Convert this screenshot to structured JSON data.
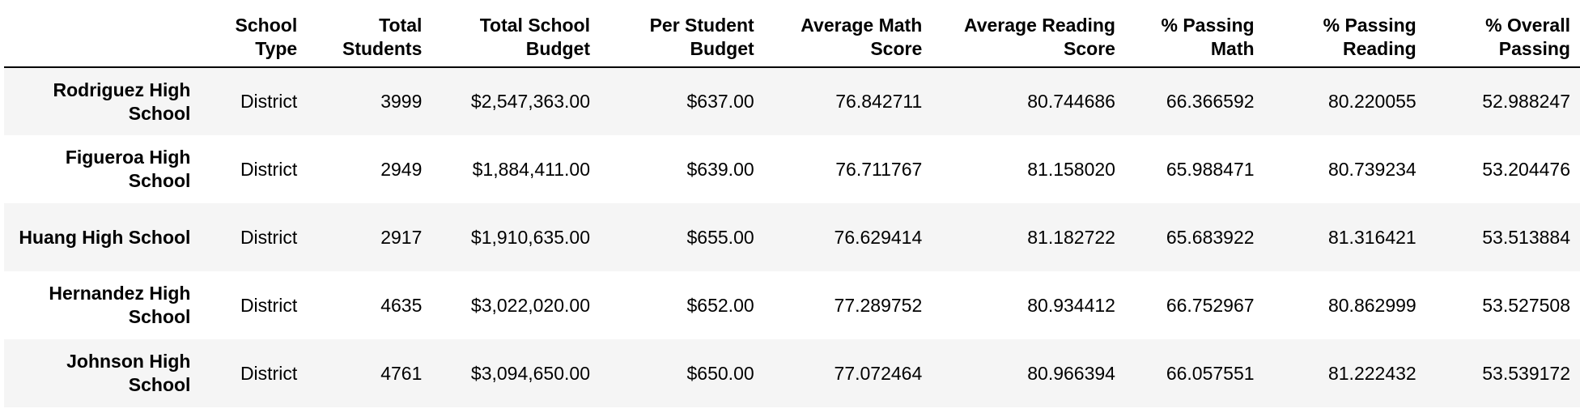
{
  "table": {
    "columns": [
      "",
      "School Type",
      "Total Students",
      "Total School Budget",
      "Per Student Budget",
      "Average Math Score",
      "Average Reading Score",
      "% Passing Math",
      "% Passing Reading",
      "% Overall Passing"
    ],
    "rows": [
      {
        "school": "Rodriguez High School",
        "school_type": "District",
        "total_students": "3999",
        "total_budget": "$2,547,363.00",
        "per_student_budget": "$637.00",
        "avg_math": "76.842711",
        "avg_reading": "80.744686",
        "pct_math": "66.366592",
        "pct_reading": "80.220055",
        "pct_overall": "52.988247"
      },
      {
        "school": "Figueroa High School",
        "school_type": "District",
        "total_students": "2949",
        "total_budget": "$1,884,411.00",
        "per_student_budget": "$639.00",
        "avg_math": "76.711767",
        "avg_reading": "81.158020",
        "pct_math": "65.988471",
        "pct_reading": "80.739234",
        "pct_overall": "53.204476"
      },
      {
        "school": "Huang High School",
        "school_type": "District",
        "total_students": "2917",
        "total_budget": "$1,910,635.00",
        "per_student_budget": "$655.00",
        "avg_math": "76.629414",
        "avg_reading": "81.182722",
        "pct_math": "65.683922",
        "pct_reading": "81.316421",
        "pct_overall": "53.513884"
      },
      {
        "school": "Hernandez High School",
        "school_type": "District",
        "total_students": "4635",
        "total_budget": "$3,022,020.00",
        "per_student_budget": "$652.00",
        "avg_math": "77.289752",
        "avg_reading": "80.934412",
        "pct_math": "66.752967",
        "pct_reading": "80.862999",
        "pct_overall": "53.527508"
      },
      {
        "school": "Johnson High School",
        "school_type": "District",
        "total_students": "4761",
        "total_budget": "$3,094,650.00",
        "per_student_budget": "$650.00",
        "avg_math": "77.072464",
        "avg_reading": "80.966394",
        "pct_math": "66.057551",
        "pct_reading": "81.222432",
        "pct_overall": "53.539172"
      }
    ]
  }
}
